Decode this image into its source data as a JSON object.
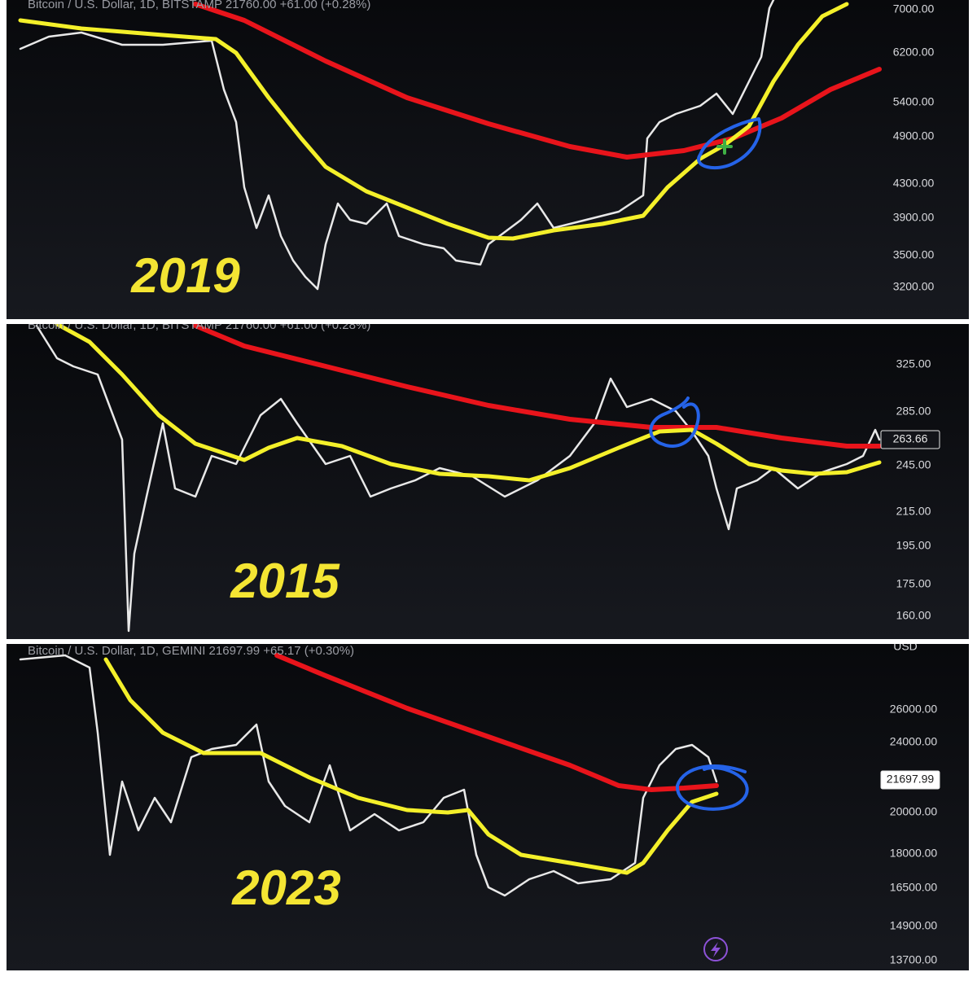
{
  "panels": [
    {
      "header": "Bitcoin / U.S. Dollar, 1D, BITSTAMP  21760.00 +61.00 (+0.28%)",
      "year": "2019",
      "price_scale": [
        "7000.00",
        "6200.00",
        "5400.00",
        "4900.00",
        "4300.00",
        "3900.00",
        "3500.00",
        "3200.00"
      ]
    },
    {
      "header": "Bitcoin / U.S. Dollar, 1D, BITSTAMP  21760.00 +61.00 (+0.28%)",
      "year": "2015",
      "price_scale": [
        "325.00",
        "285.00",
        "245.00",
        "215.00",
        "195.00",
        "175.00",
        "160.00"
      ],
      "price_tag": "263.66"
    },
    {
      "header": "Bitcoin / U.S. Dollar, 1D, GEMINI  21697.99 +65.17 (+0.30%)",
      "year": "2023",
      "currency": "USD",
      "price_scale": [
        "26000.00",
        "24000.00",
        "20000.00",
        "18000.00",
        "16500.00",
        "14900.00",
        "13700.00"
      ],
      "price_tag": "21697.99"
    }
  ]
}
